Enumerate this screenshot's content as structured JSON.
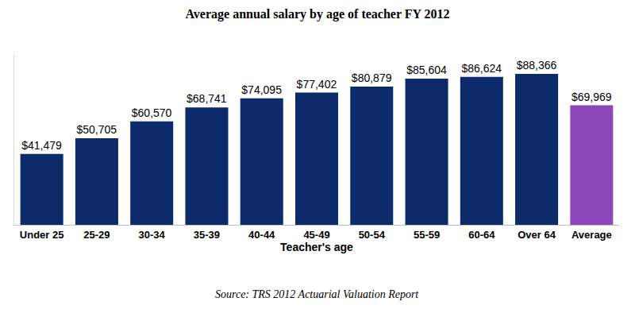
{
  "chart_data": {
    "type": "bar",
    "title": "Average annual salary by age of teacher FY 2012",
    "x_label": "Teacher's age",
    "annotations": [
      "Source: TRS 2012 Actuarial Valuation Report"
    ],
    "categories": [
      "Under 25",
      "25-29",
      "30-34",
      "35-39",
      "40-44",
      "45-49",
      "50-54",
      "55-59",
      "60-64",
      "Over 64",
      "Average"
    ],
    "values": [
      41479,
      50705,
      60570,
      68741,
      74095,
      77402,
      80879,
      85604,
      86624,
      88366,
      69969
    ],
    "value_labels": [
      "$41,479",
      "$50,705",
      "$60,570",
      "$68,741",
      "$74,095",
      "$77,402",
      "$80,879",
      "$85,604",
      "$86,624",
      "$88,366",
      "$69,969"
    ],
    "colors": [
      "#0d2b6b",
      "#0d2b6b",
      "#0d2b6b",
      "#0d2b6b",
      "#0d2b6b",
      "#0d2b6b",
      "#0d2b6b",
      "#0d2b6b",
      "#0d2b6b",
      "#0d2b6b",
      "#8b47b8"
    ],
    "ylim": [
      0,
      100000
    ],
    "grid": false,
    "data_labels": true,
    "tick_labels": "x"
  }
}
